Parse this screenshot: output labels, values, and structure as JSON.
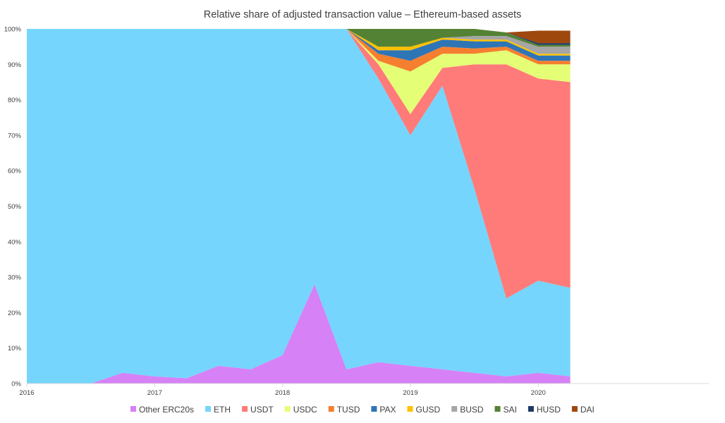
{
  "chart_data": {
    "type": "area",
    "stacked": "percent",
    "title": "Relative share of adjusted transaction value – Ethereum-based assets",
    "xlabel": "",
    "ylabel": "",
    "ylim": [
      0,
      100
    ],
    "x_ticks": [
      "2016",
      "2017",
      "2018",
      "2019",
      "2020"
    ],
    "y_ticks": [
      "0%",
      "10%",
      "20%",
      "30%",
      "40%",
      "50%",
      "60%",
      "70%",
      "80%",
      "90%",
      "100%"
    ],
    "grid": false,
    "legend_position": "bottom",
    "x": [
      "2016-01",
      "2016-04",
      "2016-07",
      "2016-10",
      "2017-01",
      "2017-04",
      "2017-07",
      "2017-10",
      "2018-01",
      "2018-04",
      "2018-07",
      "2018-10",
      "2019-01",
      "2019-04",
      "2019-07",
      "2019-10",
      "2020-01",
      "2020-04"
    ],
    "series": [
      {
        "name": "Other ERC20s",
        "color": "#d681f6",
        "values": [
          0,
          0,
          0,
          3,
          2,
          1.5,
          5,
          4,
          8,
          28,
          4,
          6,
          5,
          4,
          3,
          2,
          3,
          2
        ]
      },
      {
        "name": "ETH",
        "color": "#75d5fd",
        "values": [
          100,
          100,
          100,
          97,
          98,
          98.5,
          95,
          96,
          92,
          72,
          96,
          80,
          65,
          80,
          52,
          22,
          26,
          25
        ]
      },
      {
        "name": "USDT",
        "color": "#ff7b79",
        "values": [
          0,
          0,
          0,
          0,
          0,
          0,
          0,
          0,
          0,
          0,
          0,
          4,
          6,
          5,
          35,
          66,
          57,
          58
        ]
      },
      {
        "name": "USDC",
        "color": "#e4ff76",
        "values": [
          0,
          0,
          0,
          0,
          0,
          0,
          0,
          0,
          0,
          0,
          0,
          1,
          12,
          4,
          3,
          4,
          4,
          5
        ]
      },
      {
        "name": "TUSD",
        "color": "#f67f2f",
        "values": [
          0,
          0,
          0,
          0,
          0,
          0,
          0,
          0,
          0,
          0,
          0,
          2,
          3,
          2,
          1.5,
          1,
          1,
          1
        ]
      },
      {
        "name": "PAX",
        "color": "#2e75b6",
        "values": [
          0,
          0,
          0,
          0,
          0,
          0,
          0,
          0,
          0,
          0,
          0,
          1,
          3,
          2,
          2,
          1.5,
          1.5,
          1.5
        ]
      },
      {
        "name": "GUSD",
        "color": "#ffc000",
        "values": [
          0,
          0,
          0,
          0,
          0,
          0,
          0,
          0,
          0,
          0,
          0,
          1,
          1,
          0.5,
          0.5,
          0.5,
          0.5,
          0.5
        ]
      },
      {
        "name": "BUSD",
        "color": "#a5a5a5",
        "values": [
          0,
          0,
          0,
          0,
          0,
          0,
          0,
          0,
          0,
          0,
          0,
          0,
          0,
          0,
          1,
          1,
          2,
          2
        ]
      },
      {
        "name": "SAI",
        "color": "#548235",
        "values": [
          0,
          0,
          0,
          0,
          0,
          0,
          0,
          0,
          0,
          0,
          0,
          5,
          5,
          2.5,
          2,
          1,
          0.5,
          0.5
        ]
      },
      {
        "name": "HUSD",
        "color": "#1f3864",
        "values": [
          0,
          0,
          0,
          0,
          0,
          0,
          0,
          0,
          0,
          0,
          0,
          0,
          0,
          0,
          0,
          0,
          0.5,
          0.5
        ]
      },
      {
        "name": "DAI",
        "color": "#9e480e",
        "values": [
          0,
          0,
          0,
          0,
          0,
          0,
          0,
          0,
          0,
          0,
          0,
          0,
          0,
          0,
          0,
          0,
          3.5,
          3.5
        ]
      }
    ]
  }
}
